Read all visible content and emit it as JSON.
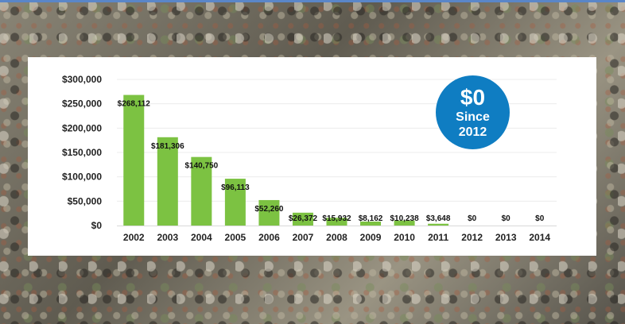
{
  "chart_data": {
    "type": "bar",
    "categories": [
      "2002",
      "2003",
      "2004",
      "2005",
      "2006",
      "2007",
      "2008",
      "2009",
      "2010",
      "2011",
      "2012",
      "2013",
      "2014"
    ],
    "values": [
      268112,
      181306,
      140750,
      96113,
      52260,
      26372,
      15932,
      8162,
      10238,
      3648,
      0,
      0,
      0
    ],
    "data_labels": [
      "$268,112",
      "$181,306",
      "$140,750",
      "$96,113",
      "$52,260",
      "$26,372",
      "$15,932",
      "$8,162",
      "$10,238",
      "$3,648",
      "$0",
      "$0",
      "$0"
    ],
    "y_ticks": [
      0,
      50000,
      100000,
      150000,
      200000,
      250000,
      300000
    ],
    "y_tick_labels": [
      "$0",
      "$50,000",
      "$100,000",
      "$150,000",
      "$200,000",
      "$250,000",
      "$300,000"
    ],
    "ylim": [
      0,
      300000
    ],
    "grid": true,
    "bar_color": "#7cc242"
  },
  "badge": {
    "value": "$0",
    "line1": "Since",
    "line2": "2012",
    "color": "#0f7dc2"
  }
}
